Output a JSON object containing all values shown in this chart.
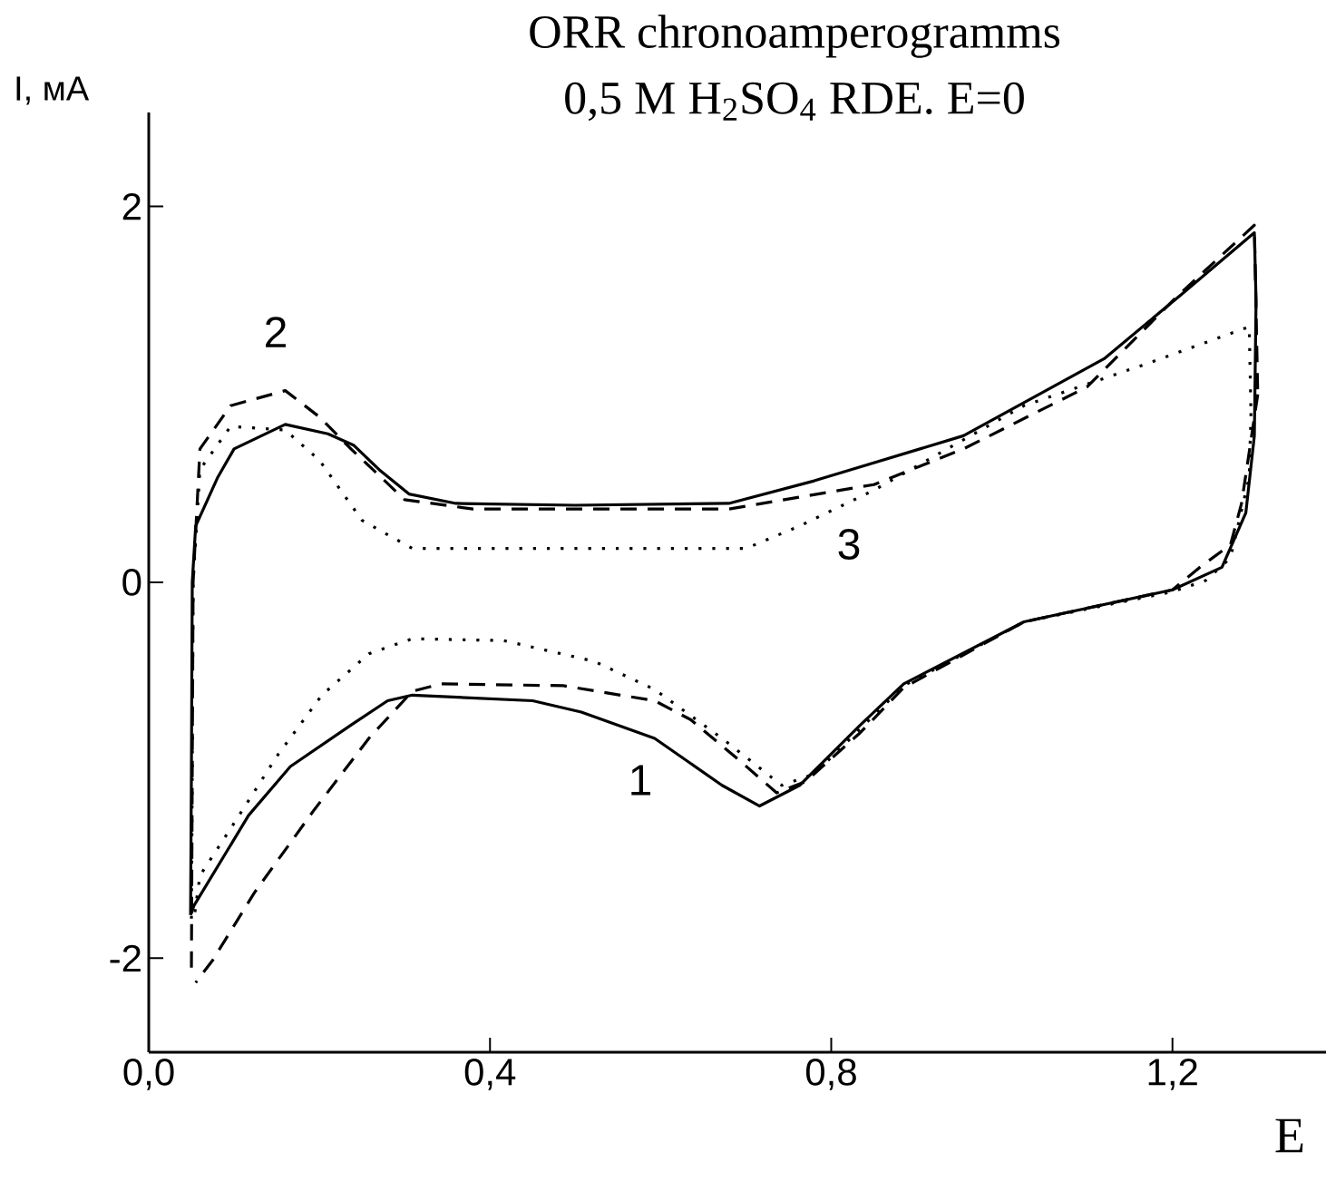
{
  "chart_data": {
    "type": "line",
    "title": "ORR chronoamperogramms",
    "subtitle": "0,5 M H$_{2}$SO$_{4}$ RDE. E=0",
    "xlabel": "E",
    "ylabel": "I, мА",
    "xlim": [
      0,
      1.38
    ],
    "ylim": [
      -2.5,
      2.5
    ],
    "xticks": [
      {
        "value": 0,
        "label": "0,0"
      },
      {
        "value": 0.4,
        "label": "0,4"
      },
      {
        "value": 0.8,
        "label": "0,8"
      },
      {
        "value": 1.2,
        "label": "1,2"
      }
    ],
    "yticks": [
      -2,
      0,
      2
    ],
    "series": [
      {
        "color": "#000000",
        "line_style": "solid",
        "x": [
          0.049,
          0.05,
          0.051,
          0.055,
          0.081,
          0.1,
          0.16,
          0.21,
          0.24,
          0.27,
          0.305,
          0.36,
          0.5,
          0.68,
          0.78,
          0.955,
          1.12,
          1.21,
          1.296,
          1.298,
          null,
          1.298,
          1.296,
          1.286,
          1.258,
          1.2,
          1.026,
          0.885,
          0.834,
          0.763,
          0.716,
          0.672,
          0.593,
          0.507,
          0.45,
          0.309,
          0.28,
          0.237,
          0.166,
          0.117,
          0.053,
          0.049
        ],
        "values": [
          -1.77,
          -1.0,
          0.0,
          0.3,
          0.56,
          0.71,
          0.84,
          0.79,
          0.73,
          0.6,
          0.47,
          0.42,
          0.41,
          0.42,
          0.54,
          0.78,
          1.19,
          1.53,
          1.86,
          1.5,
          null,
          1.5,
          0.78,
          0.37,
          0.08,
          -0.04,
          -0.21,
          -0.54,
          -0.76,
          -1.08,
          -1.19,
          -1.08,
          -0.83,
          -0.69,
          -0.63,
          -0.6,
          -0.63,
          -0.76,
          -0.98,
          -1.24,
          -1.72,
          -1.77
        ]
      },
      {
        "color": "#000000",
        "line_style": "dashed",
        "x": [
          0.05,
          0.051,
          0.052,
          0.06,
          0.096,
          0.16,
          0.2,
          0.237,
          0.3,
          0.38,
          0.68,
          0.85,
          0.955,
          1.1,
          1.205,
          1.296,
          1.3,
          null,
          1.3,
          1.281,
          1.268,
          1.232,
          1.2,
          1.026,
          0.885,
          0.834,
          0.77,
          0.736,
          0.693,
          0.635,
          0.593,
          0.486,
          0.343,
          0.309,
          0.258,
          0.194,
          0.124,
          0.075,
          0.055
        ],
        "values": [
          -2.05,
          -1.0,
          0.0,
          0.71,
          0.94,
          1.02,
          0.88,
          0.71,
          0.44,
          0.39,
          0.39,
          0.52,
          0.71,
          1.04,
          1.52,
          1.9,
          1.0,
          null,
          1.0,
          0.42,
          0.2,
          0.08,
          -0.04,
          -0.21,
          -0.56,
          -0.8,
          -1.06,
          -1.12,
          -0.95,
          -0.73,
          -0.63,
          -0.55,
          -0.54,
          -0.58,
          -0.83,
          -1.21,
          -1.65,
          -2.01,
          -2.13
        ]
      },
      {
        "color": "#000000",
        "line_style": "dotted",
        "x": [
          0.05,
          0.051,
          0.052,
          0.06,
          0.096,
          0.16,
          0.2,
          0.25,
          0.309,
          0.5,
          0.7,
          0.763,
          0.85,
          1.026,
          1.168,
          1.29,
          1.292,
          null,
          1.292,
          1.29,
          1.268,
          1.239,
          1.2,
          1.026,
          0.885,
          0.834,
          0.78,
          0.742,
          0.672,
          0.593,
          0.522,
          0.416,
          0.309,
          0.258,
          0.203,
          0.151,
          0.096,
          0.06,
          0.053
        ],
        "values": [
          -1.79,
          -1.0,
          0.0,
          0.6,
          0.83,
          0.81,
          0.65,
          0.33,
          0.18,
          0.18,
          0.18,
          0.3,
          0.49,
          0.94,
          1.16,
          1.36,
          0.9,
          null,
          0.9,
          0.56,
          0.13,
          0.01,
          -0.05,
          -0.21,
          -0.55,
          -0.78,
          -1.02,
          -1.08,
          -0.83,
          -0.57,
          -0.42,
          -0.31,
          -0.3,
          -0.38,
          -0.6,
          -0.92,
          -1.31,
          -1.56,
          -1.79
        ]
      }
    ],
    "annotations": [
      "1",
      "2",
      "3"
    ]
  }
}
